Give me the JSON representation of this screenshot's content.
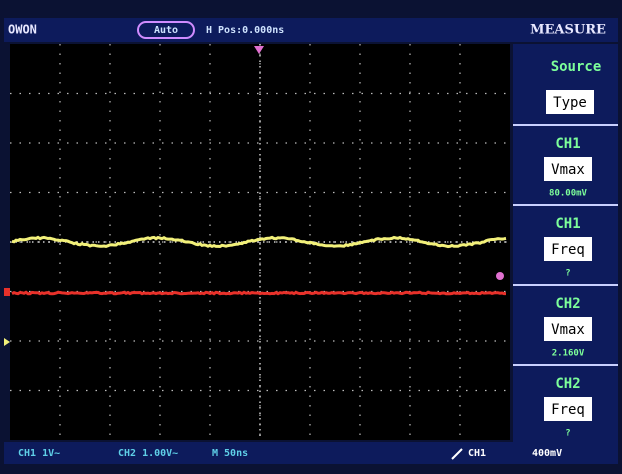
{
  "header": {
    "brand": "OWON",
    "trigger_mode": "Auto",
    "h_pos": "H Pos:0.000ns",
    "menu_title": "MEASURE"
  },
  "menu": {
    "source_label": "Source",
    "type_label": "Type",
    "items": [
      {
        "channel": "CH1",
        "type": "Vmax",
        "value": "80.00mV"
      },
      {
        "channel": "CH1",
        "type": "Freq",
        "value": "?"
      },
      {
        "channel": "CH2",
        "type": "Vmax",
        "value": "2.160V"
      },
      {
        "channel": "CH2",
        "type": "Freq",
        "value": "?"
      }
    ]
  },
  "status_bar": {
    "ch1": "CH1 1V~",
    "ch2": "CH2 1.00V~",
    "timebase": "M 50ns",
    "trigger_source": "CH1",
    "trigger_level": "400mV"
  }
}
